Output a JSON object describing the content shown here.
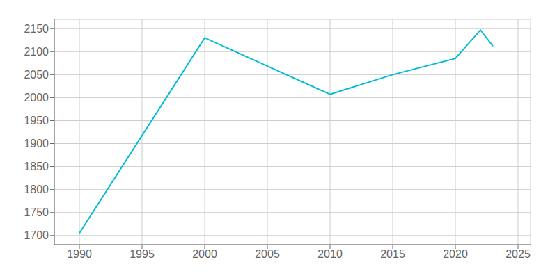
{
  "chart_data": {
    "type": "line",
    "x": [
      1990,
      2000,
      2010,
      2015,
      2020,
      2022,
      2023
    ],
    "values": [
      1705,
      2130,
      2007,
      2050,
      2085,
      2147,
      2112
    ],
    "color": "#00BCD4",
    "xlim": [
      1988,
      2026
    ],
    "ylim": [
      1680,
      2170
    ],
    "xticks": [
      1990,
      1995,
      2000,
      2005,
      2010,
      2015,
      2020,
      2025
    ],
    "yticks": [
      1700,
      1750,
      1800,
      1850,
      1900,
      1950,
      2000,
      2050,
      2100,
      2150
    ],
    "grid": true
  }
}
